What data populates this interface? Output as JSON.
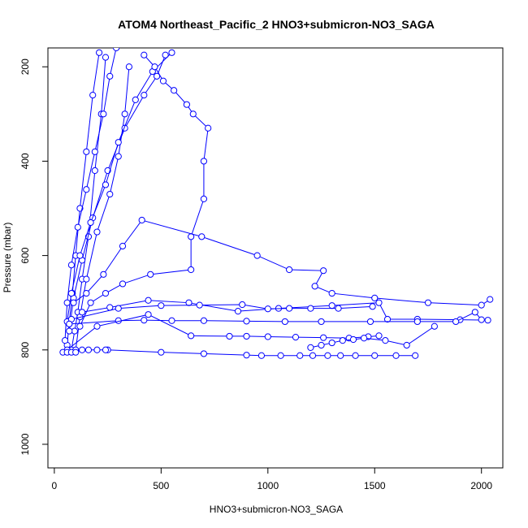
{
  "chart_data": {
    "type": "line",
    "title": "ATOM4 Northeast_Pacific_2 HNO3+submicron-NO3_SAGA",
    "xlabel": "HNO3+submicron-NO3_SAGA",
    "ylabel": "Pressure (mbar)",
    "xlim": [
      -30,
      2100
    ],
    "ylim": [
      1050,
      160
    ],
    "y_reversed": true,
    "x_ticks": [
      0,
      500,
      1000,
      1500,
      2000
    ],
    "y_ticks": [
      200,
      400,
      600,
      800,
      1000
    ],
    "grid": false,
    "legend": "none",
    "marker": "open-circle",
    "color": "#0000ff",
    "series": [
      {
        "x": [
          80,
          95,
          110,
          130,
          160,
          190,
          220,
          240
        ],
        "y": [
          800,
          760,
          720,
          650,
          560,
          420,
          300,
          180
        ]
      },
      {
        "x": [
          60,
          70,
          85,
          100,
          120,
          150,
          180,
          210
        ],
        "y": [
          790,
          740,
          680,
          600,
          500,
          380,
          260,
          170
        ]
      },
      {
        "x": [
          100,
          120,
          150,
          200,
          260,
          300,
          330,
          350
        ],
        "y": [
          800,
          730,
          650,
          550,
          470,
          390,
          300,
          200
        ]
      },
      {
        "x": [
          50,
          60,
          80,
          110,
          150,
          190,
          230,
          260,
          290
        ],
        "y": [
          780,
          700,
          620,
          540,
          460,
          380,
          300,
          220,
          160
        ]
      },
      {
        "x": [
          70,
          90,
          130,
          180,
          250,
          330,
          420,
          480,
          520
        ],
        "y": [
          760,
          690,
          610,
          520,
          420,
          330,
          260,
          220,
          175
        ]
      },
      {
        "x": [
          60,
          80,
          120,
          170,
          240,
          300,
          380,
          460,
          550
        ],
        "y": [
          740,
          680,
          600,
          530,
          450,
          360,
          270,
          210,
          170
        ]
      },
      {
        "x": [
          120,
          170,
          240,
          320,
          450,
          640,
          640,
          700,
          700,
          720,
          650,
          620,
          560,
          510,
          470,
          420
        ],
        "y": [
          750,
          700,
          680,
          660,
          640,
          630,
          560,
          480,
          400,
          330,
          300,
          280,
          250,
          230,
          200,
          175
        ]
      },
      {
        "x": [
          90,
          150,
          230,
          320,
          410,
          690,
          950,
          1100,
          1260,
          1220,
          1300,
          1500,
          1750,
          2000,
          2040
        ],
        "y": [
          700,
          680,
          640,
          580,
          525,
          560,
          600,
          630,
          632,
          665,
          680,
          690,
          700,
          705,
          693
        ]
      },
      {
        "x": [
          130,
          260,
          440,
          630,
          860,
          1050,
          1300,
          1520,
          1560,
          1700,
          1900,
          2030
        ],
        "y": [
          720,
          710,
          695,
          700,
          718,
          712,
          706,
          700,
          735,
          735,
          736,
          737
        ]
      },
      {
        "x": [
          80,
          300,
          500,
          680,
          880,
          1000,
          1100,
          1200,
          1330,
          1490
        ],
        "y": [
          735,
          712,
          706,
          705,
          704,
          713,
          712,
          712,
          712,
          708
        ]
      },
      {
        "x": [
          70,
          300,
          420,
          550,
          700,
          900,
          1080,
          1250,
          1480,
          1700,
          1880,
          1970,
          2000
        ],
        "y": [
          745,
          738,
          737,
          738,
          738,
          739,
          740,
          740,
          740,
          740,
          740,
          720,
          736
        ]
      },
      {
        "x": [
          60,
          200,
          440,
          640,
          820,
          900,
          1000,
          1130,
          1260,
          1380,
          1470,
          1520
        ],
        "y": [
          800,
          750,
          725,
          770,
          771,
          771,
          772,
          773,
          774,
          775,
          772,
          770
        ]
      },
      {
        "x": [
          250,
          500,
          700,
          900,
          970,
          1060,
          1150,
          1210,
          1280,
          1340,
          1410,
          1500,
          1600,
          1690
        ],
        "y": [
          800,
          805,
          808,
          811,
          812,
          812,
          812,
          812,
          812,
          812,
          812,
          812,
          812,
          812
        ]
      },
      {
        "x": [
          40,
          60,
          80,
          100,
          130,
          160,
          200,
          240
        ],
        "y": [
          805,
          805,
          805,
          805,
          800,
          800,
          800,
          800
        ]
      },
      {
        "x": [
          1200,
          1250,
          1300,
          1350,
          1400,
          1450,
          1550,
          1650,
          1780
        ],
        "y": [
          795,
          790,
          785,
          780,
          778,
          775,
          780,
          790,
          750
        ]
      }
    ]
  }
}
